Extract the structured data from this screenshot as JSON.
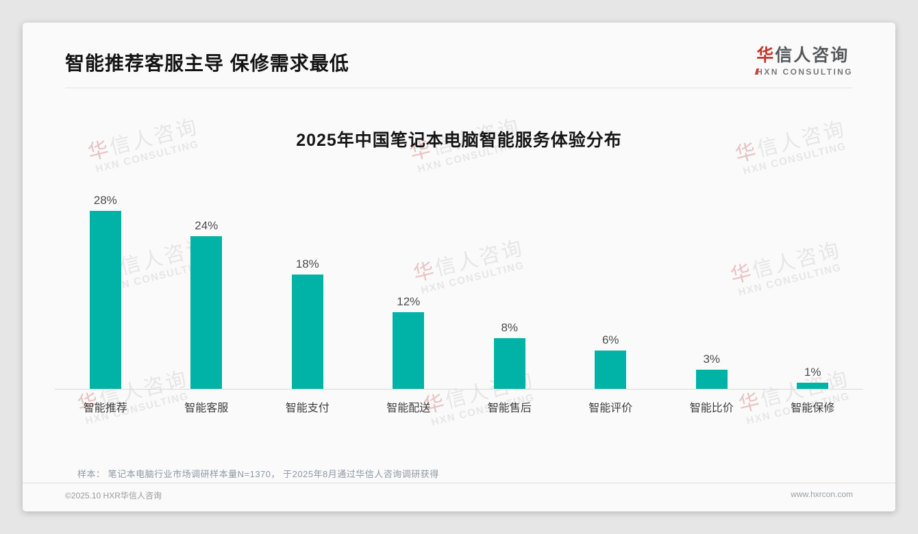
{
  "header": {
    "title": "智能推荐客服主导 保修需求最低"
  },
  "brand": {
    "cn_first": "华",
    "cn_rest": "信人咨询",
    "en_first": "H",
    "en_rest": "XN CONSULTING"
  },
  "watermark": {
    "cn_first": "华",
    "cn_rest": "信人咨询",
    "en": "HXN CONSULTING"
  },
  "chart_data": {
    "type": "bar",
    "title": "2025年中国笔记本电脑智能服务体验分布",
    "categories": [
      "智能推荐",
      "智能客服",
      "智能支付",
      "智能配送",
      "智能售后",
      "智能评价",
      "智能比价",
      "智能保修"
    ],
    "values": [
      28,
      24,
      18,
      12,
      8,
      6,
      3,
      1
    ],
    "data_labels": [
      "28%",
      "24%",
      "18%",
      "12%",
      "8%",
      "6%",
      "3%",
      "1%"
    ],
    "unit": "%",
    "ylim": [
      0,
      30
    ],
    "grid": false,
    "legend": "none",
    "bar_color": "#00b3a6"
  },
  "note": {
    "text": "样本： 笔记本电脑行业市场调研样本量N=1370， 于2025年8月通过华信人咨询调研获得"
  },
  "footer": {
    "left": "©2025.10 HXR华信人咨询",
    "right": "www.hxrcon.com"
  },
  "colors": {
    "bar": "#00b3a6",
    "accent_red": "#c5352c",
    "title_text": "#141414",
    "note_text": "#8e98a4"
  }
}
